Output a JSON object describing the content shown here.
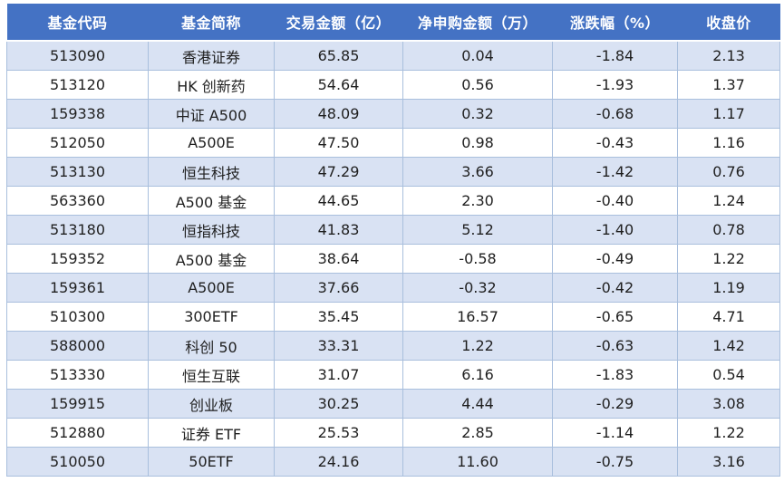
{
  "colors": {
    "header_bg": "#4472C4",
    "header_text": "#FFFFFF",
    "band_row_bg": "#D9E2F3",
    "plain_row_bg": "#FFFFFF",
    "cell_border": "#A9BFDD",
    "body_text": "#1F1F1F"
  },
  "chart_data": {
    "type": "table",
    "columns": [
      "基金代码",
      "基金简称",
      "交易金额（亿）",
      "净申购金额（万）",
      "涨跌幅（%）",
      "收盘价"
    ],
    "rows": [
      [
        "513090",
        "香港证券",
        "65.85",
        "0.04",
        "-1.84",
        "2.13"
      ],
      [
        "513120",
        "HK 创新药",
        "54.64",
        "0.56",
        "-1.93",
        "1.37"
      ],
      [
        "159338",
        "中证 A500",
        "48.09",
        "0.32",
        "-0.68",
        "1.17"
      ],
      [
        "512050",
        "A500E",
        "47.50",
        "0.98",
        "-0.43",
        "1.16"
      ],
      [
        "513130",
        "恒生科技",
        "47.29",
        "3.66",
        "-1.42",
        "0.76"
      ],
      [
        "563360",
        "A500 基金",
        "44.65",
        "2.30",
        "-0.40",
        "1.24"
      ],
      [
        "513180",
        "恒指科技",
        "41.83",
        "5.12",
        "-1.40",
        "0.78"
      ],
      [
        "159352",
        "A500 基金",
        "38.64",
        "-0.58",
        "-0.49",
        "1.22"
      ],
      [
        "159361",
        "A500E",
        "37.66",
        "-0.32",
        "-0.42",
        "1.19"
      ],
      [
        "510300",
        "300ETF",
        "35.45",
        "16.57",
        "-0.65",
        "4.71"
      ],
      [
        "588000",
        "科创 50",
        "33.31",
        "1.22",
        "-0.63",
        "1.42"
      ],
      [
        "513330",
        "恒生互联",
        "31.07",
        "6.16",
        "-1.83",
        "0.54"
      ],
      [
        "159915",
        "创业板",
        "30.25",
        "4.44",
        "-0.29",
        "3.08"
      ],
      [
        "512880",
        "证券 ETF",
        "25.53",
        "2.85",
        "-1.14",
        "1.22"
      ],
      [
        "510050",
        "50ETF",
        "24.16",
        "11.60",
        "-0.75",
        "3.16"
      ]
    ]
  }
}
